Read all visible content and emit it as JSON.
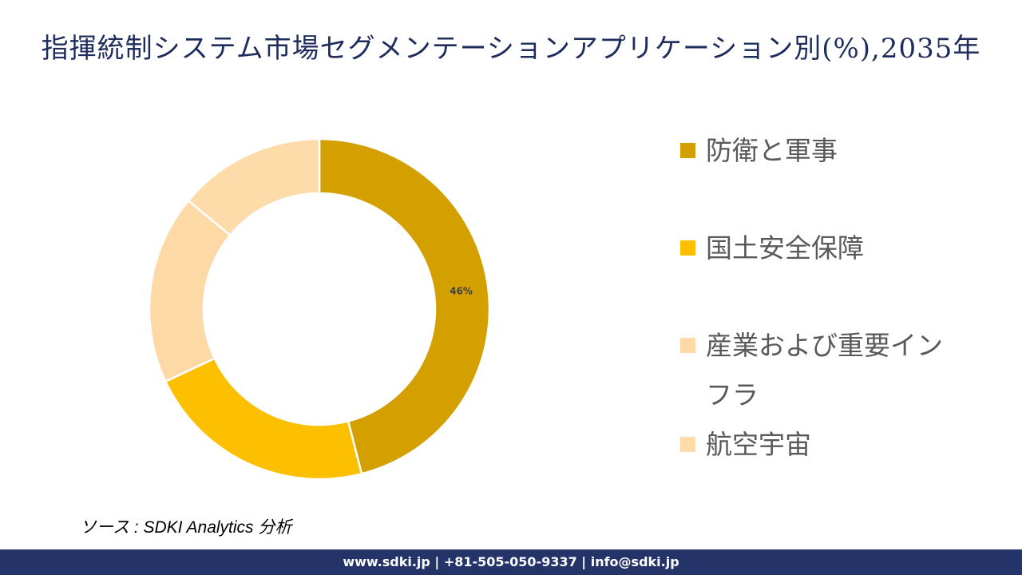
{
  "title": "指揮統制システム市場セグメンテーションアプリケーション別(%),2035年",
  "chart_data": {
    "type": "pie",
    "subtype": "donut",
    "title": "指揮統制システム市場セグメンテーションアプリケーション別(%),2035年",
    "categories": [
      "防衛と軍事",
      "国土安全保障",
      "産業および重要インフラ",
      "航空宇宙"
    ],
    "values": [
      46,
      22,
      18,
      14
    ],
    "colors": [
      "#d4a000",
      "#fdc000",
      "#fdd9a6",
      "#fddcaa"
    ],
    "data_labels": [
      {
        "category": "防衛と軍事",
        "text": "46%"
      }
    ],
    "legend_position": "right",
    "start_angle": 0,
    "direction": "clockwise"
  },
  "legend": {
    "items": [
      {
        "label": "防衛と軍事",
        "color": "#d4a000"
      },
      {
        "label": "国土安全保障",
        "color": "#fdc000"
      },
      {
        "label": "産業および重要インフラ",
        "color": "#fdd9a6"
      },
      {
        "label": "航空宇宙",
        "color": "#fddcaa"
      }
    ]
  },
  "source": "ソース : SDKI Analytics  分析",
  "footer": "www.sdki.jp | +81-505-050-9337 | info@sdki.jp"
}
